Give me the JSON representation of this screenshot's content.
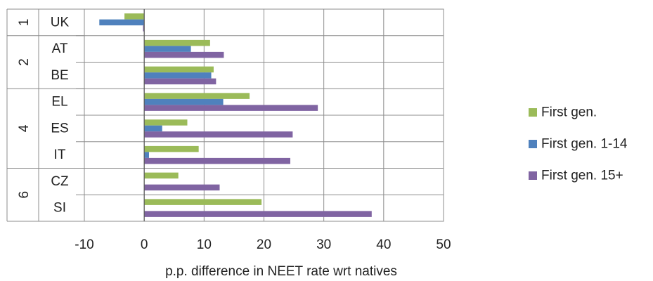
{
  "chart_data": {
    "type": "bar",
    "orientation": "horizontal",
    "xlabel": "p.p. difference in NEET rate wrt natives",
    "ylabel": "",
    "xlim": [
      -10,
      50
    ],
    "xticks": [
      -10,
      0,
      10,
      20,
      30,
      40,
      50
    ],
    "grid": true,
    "legend_position": "right",
    "groups": [
      {
        "label": "1",
        "categories": [
          "UK"
        ]
      },
      {
        "label": "2",
        "categories": [
          "AT",
          "BE"
        ]
      },
      {
        "label": "4",
        "categories": [
          "EL",
          "ES",
          "IT"
        ]
      },
      {
        "label": "6",
        "categories": [
          "CZ",
          "SI"
        ]
      }
    ],
    "categories": [
      "UK",
      "AT",
      "BE",
      "EL",
      "ES",
      "IT",
      "CZ",
      "SI"
    ],
    "series": [
      {
        "name": "First gen.",
        "color": "#9bbb59",
        "values": [
          -3.3,
          11.0,
          11.6,
          17.6,
          7.2,
          9.1,
          5.7,
          19.6
        ]
      },
      {
        "name": "First gen. 1-14",
        "color": "#4f81bd",
        "values": [
          -7.5,
          7.8,
          11.2,
          13.2,
          3.0,
          0.8,
          null,
          null
        ]
      },
      {
        "name": "First gen. 15+",
        "color": "#8064a2",
        "values": [
          -0.2,
          13.3,
          12.0,
          29.0,
          24.8,
          24.4,
          12.6,
          38.0
        ]
      }
    ]
  }
}
